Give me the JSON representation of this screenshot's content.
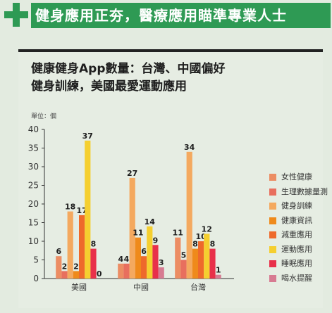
{
  "header": {
    "title": "健身應用正夯，醫療應用瞄準專業人士"
  },
  "chart_data": {
    "type": "bar",
    "title_lines": [
      "健康健身App數量：台灣、中國偏好",
      "健身訓練，美國最愛運動應用"
    ],
    "unit_label": "單位：個",
    "categories": [
      "美國",
      "中國",
      "台灣"
    ],
    "ylim": [
      0,
      40
    ],
    "yticks": [
      0,
      5,
      10,
      15,
      20,
      25,
      30,
      35,
      40
    ],
    "legend_position": "right",
    "grid": false,
    "series": [
      {
        "name": "女性健康",
        "color": "#ec8d63",
        "values": [
          6,
          4,
          11
        ]
      },
      {
        "name": "生理數據量測",
        "color": "#e86f5e",
        "values": [
          2,
          4,
          5
        ]
      },
      {
        "name": "健身訓練",
        "color": "#f4a95f",
        "values": [
          18,
          27,
          34
        ]
      },
      {
        "name": "健康資訊",
        "color": "#ef8a1b",
        "values": [
          2,
          11,
          8
        ]
      },
      {
        "name": "減重應用",
        "color": "#ee6a2b",
        "values": [
          17,
          6,
          10
        ]
      },
      {
        "name": "運動應用",
        "color": "#f5cf2f",
        "values": [
          37,
          14,
          12
        ]
      },
      {
        "name": "睡眠應用",
        "color": "#e8304a",
        "values": [
          8,
          9,
          8
        ]
      },
      {
        "name": "喝水提醒",
        "color": "#d77b92",
        "values": [
          0,
          3,
          1
        ]
      }
    ]
  }
}
